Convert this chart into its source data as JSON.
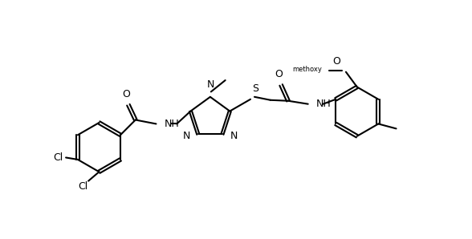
{
  "background_color": "#ffffff",
  "line_color": "#000000",
  "line_width": 1.5,
  "font_size": 9,
  "fig_width": 5.88,
  "fig_height": 2.98,
  "dpi": 100,
  "xlim": [
    0,
    10
  ],
  "ylim": [
    0,
    6
  ]
}
